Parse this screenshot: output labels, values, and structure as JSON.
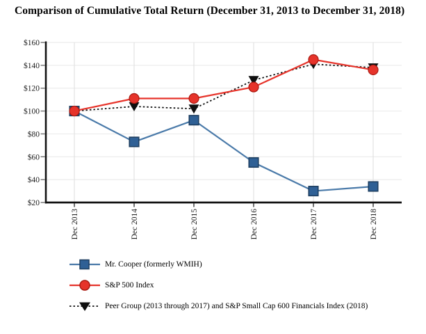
{
  "title": "Comparison of Cumulative Total Return (December 31, 2013 to December 31, 2018)",
  "chart_data": {
    "type": "line",
    "title": "Comparison of Cumulative Total Return (December 31, 2013 to December 31, 2018)",
    "categories": [
      "Dec 2013",
      "Dec 2014",
      "Dec 2015",
      "Dec 2016",
      "Dec 2017",
      "Dec 2018"
    ],
    "series": [
      {
        "name": "Mr. Cooper (formerly WMIH)",
        "values": [
          100,
          73,
          92,
          55,
          30,
          34
        ],
        "line_color": "#4a7aa9",
        "color": "#2f6095",
        "marker": "square",
        "marker_edge": "#1d3e60",
        "dashed": false,
        "z": 1
      },
      {
        "name": "S&P 500 Index",
        "values": [
          100,
          111,
          111,
          121,
          145,
          136
        ],
        "line_color": "#e6332a",
        "color": "#e6332a",
        "marker": "circle",
        "marker_edge": "#a81a12",
        "dashed": false,
        "z": 2
      },
      {
        "name": "Peer Group (2013 through 2017) and S&P Small Cap 600 Financials Index (2018)",
        "values": [
          100,
          104,
          102,
          127,
          141,
          138
        ],
        "line_color": "#0f0f0f",
        "color": "#0f0f0f",
        "marker": "triangle-down",
        "marker_edge": "#0f0f0f",
        "dashed": true,
        "z": 0
      }
    ],
    "y_tick_labels": [
      "$20",
      "$40",
      "$60",
      "$80",
      "$100",
      "$120",
      "$140",
      "$160"
    ],
    "y_tick_values": [
      20,
      40,
      60,
      80,
      100,
      120,
      140,
      160
    ],
    "ylim": [
      20,
      160
    ],
    "xlabel": "",
    "ylabel": "",
    "grid": true,
    "legend_position": "bottom-left",
    "colors": {
      "axis": "#111111",
      "h_gridline": "#ececec",
      "v_gridline": "#e2e2e2",
      "tick": "#6f6f6f",
      "label": "#1a1a1a"
    }
  }
}
